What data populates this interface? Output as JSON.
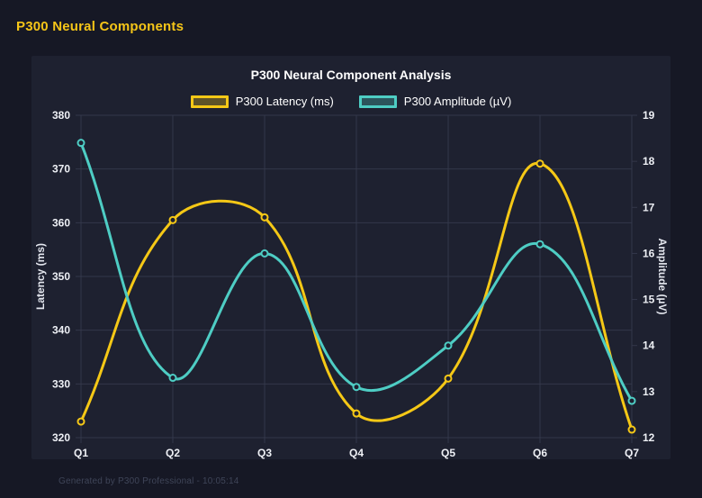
{
  "page": {
    "title": "P300 Neural Components",
    "footer": "Generated by P300 Professional - 10:05:14"
  },
  "colors": {
    "background": "#161825",
    "panel_background": "#1e2130",
    "page_title": "#f5c518",
    "chart_title": "#ffffff",
    "grid_line": "#33374a",
    "tick_text": "#eef0f5",
    "axis_title_text": "#e4e7ef",
    "footer_text": "#3f4558",
    "latency_series": "#f5c816",
    "amplitude_series": "#4ecdc4"
  },
  "chart_data": {
    "type": "line",
    "title": "P300 Neural Component Analysis",
    "categories": [
      "Q1",
      "Q2",
      "Q3",
      "Q4",
      "Q5",
      "Q6",
      "Q7"
    ],
    "series": [
      {
        "name": "P300 Latency (ms)",
        "axis": "left",
        "color": "#f5c816",
        "values": [
          323,
          360.5,
          361,
          324.5,
          331,
          371,
          321.5
        ]
      },
      {
        "name": "P300 Amplitude (µV)",
        "axis": "right",
        "color": "#4ecdc4",
        "values": [
          18.4,
          13.3,
          16.0,
          13.1,
          14.0,
          16.2,
          12.8
        ]
      }
    ],
    "left_axis": {
      "label": "Latency (ms)",
      "min": 320,
      "max": 380,
      "step": 10
    },
    "right_axis": {
      "label": "Amplitude (µV)",
      "min": 12,
      "max": 19,
      "step": 1
    },
    "grid": true,
    "legend_position": "top",
    "line_tension": 0.4
  }
}
